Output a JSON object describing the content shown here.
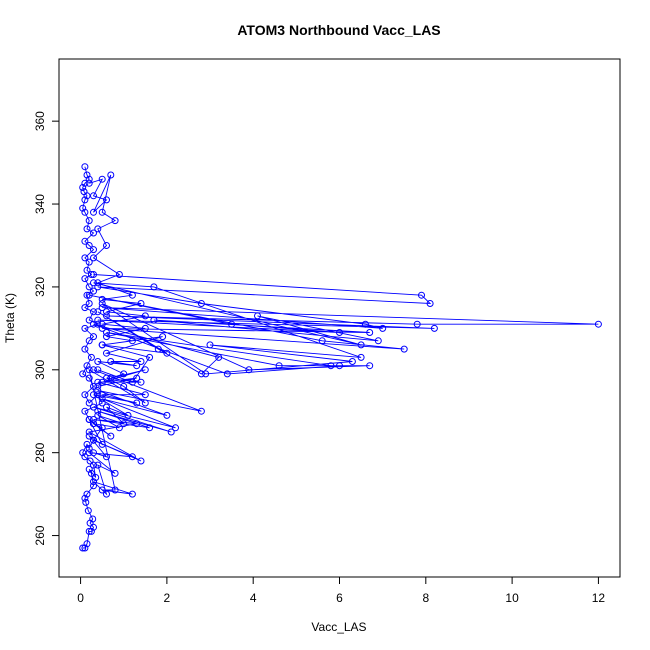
{
  "chart_data": {
    "type": "scatter",
    "title": "ATOM3 Northbound Vacc_LAS",
    "xlabel": "Vacc_LAS",
    "ylabel": "Theta (K)",
    "xlim": [
      -0.5,
      12.5
    ],
    "ylim": [
      250,
      375
    ],
    "xticks": [
      0,
      2,
      4,
      6,
      8,
      10,
      12
    ],
    "yticks": [
      260,
      280,
      300,
      320,
      340,
      360
    ],
    "grid": false,
    "legend": "none",
    "connected": true,
    "marker": "open-circle",
    "color": "#0000ff",
    "series": [
      {
        "points": [
          [
            0.05,
            257
          ],
          [
            0.1,
            257
          ],
          [
            0.15,
            258
          ],
          [
            0.2,
            261
          ],
          [
            0.25,
            261
          ],
          [
            0.3,
            262
          ],
          [
            0.22,
            263
          ],
          [
            0.28,
            264
          ],
          [
            0.18,
            266
          ],
          [
            0.12,
            268
          ],
          [
            0.1,
            269
          ],
          [
            0.15,
            270
          ],
          [
            0.3,
            272
          ],
          [
            0.25,
            275
          ],
          [
            0.2,
            276
          ],
          [
            0.35,
            274
          ],
          [
            0.3,
            277
          ],
          [
            0.22,
            278
          ],
          [
            0.1,
            279
          ],
          [
            0.05,
            280
          ],
          [
            0.15,
            282
          ],
          [
            0.2,
            281
          ],
          [
            0.3,
            283
          ],
          [
            0.5,
            286
          ],
          [
            0.3,
            287
          ],
          [
            0.2,
            288
          ],
          [
            0.1,
            290
          ],
          [
            0.5,
            292
          ],
          [
            0.4,
            294
          ],
          [
            0.2,
            292
          ],
          [
            0.1,
            294
          ],
          [
            0.3,
            296
          ],
          [
            0.2,
            298
          ],
          [
            0.05,
            299
          ],
          [
            0.15,
            301
          ],
          [
            0.25,
            303
          ],
          [
            0.1,
            305
          ],
          [
            0.2,
            307
          ],
          [
            0.3,
            308
          ],
          [
            0.1,
            310
          ],
          [
            0.4,
            311
          ],
          [
            0.2,
            312
          ],
          [
            0.3,
            314
          ],
          [
            0.1,
            315
          ],
          [
            0.2,
            316
          ],
          [
            0.15,
            318
          ],
          [
            0.3,
            319
          ],
          [
            0.2,
            320
          ],
          [
            0.1,
            322
          ],
          [
            0.25,
            323
          ],
          [
            0.15,
            324
          ],
          [
            0.2,
            326
          ],
          [
            0.1,
            327
          ],
          [
            0.3,
            329
          ],
          [
            0.2,
            330
          ],
          [
            0.1,
            331
          ],
          [
            0.3,
            333
          ],
          [
            0.15,
            334
          ],
          [
            0.2,
            336
          ],
          [
            0.1,
            338
          ],
          [
            0.05,
            339
          ],
          [
            0.1,
            341
          ],
          [
            0.15,
            342
          ],
          [
            0.08,
            343
          ],
          [
            0.05,
            344
          ],
          [
            0.1,
            345
          ],
          [
            0.2,
            346
          ],
          [
            0.15,
            347
          ],
          [
            0.1,
            349
          ]
        ]
      },
      {
        "points": [
          [
            0.3,
            323
          ],
          [
            7.9,
            318
          ],
          [
            8.1,
            316
          ],
          [
            0.4,
            320
          ],
          [
            2.8,
            316
          ],
          [
            6.6,
            311
          ],
          [
            7.0,
            310
          ],
          [
            0.5,
            315
          ],
          [
            12.0,
            311
          ],
          [
            7.8,
            311
          ],
          [
            0.6,
            313
          ],
          [
            8.2,
            310
          ],
          [
            0.4,
            312
          ],
          [
            6.0,
            309
          ],
          [
            3.5,
            311
          ],
          [
            0.2,
            318
          ],
          [
            5.6,
            307
          ],
          [
            7.5,
            305
          ],
          [
            0.5,
            310
          ],
          [
            6.7,
            309
          ],
          [
            1.7,
            312
          ],
          [
            6.9,
            307
          ],
          [
            4.1,
            313
          ],
          [
            6.5,
            306
          ],
          [
            0.3,
            321
          ],
          [
            1.7,
            320
          ],
          [
            6.5,
            303
          ],
          [
            3.0,
            306
          ],
          [
            6.3,
            302
          ],
          [
            2.9,
            299
          ],
          [
            0.5,
            316
          ],
          [
            3.9,
            300
          ],
          [
            6.7,
            301
          ],
          [
            4.6,
            301
          ],
          [
            0.6,
            309
          ],
          [
            5.8,
            301
          ],
          [
            6.0,
            301
          ],
          [
            3.4,
            299
          ],
          [
            0.3,
            311
          ],
          [
            3.2,
            303
          ],
          [
            2.8,
            299
          ],
          [
            1.8,
            305
          ],
          [
            0.4,
            314
          ],
          [
            2.0,
            304
          ],
          [
            0.5,
            306
          ],
          [
            1.6,
            303
          ],
          [
            1.2,
            297
          ],
          [
            0.4,
            300
          ]
        ]
      },
      {
        "points": [
          [
            0.3,
            300
          ],
          [
            2.8,
            290
          ],
          [
            0.4,
            295
          ],
          [
            2.0,
            289
          ],
          [
            0.5,
            293
          ],
          [
            2.2,
            286
          ],
          [
            0.3,
            291
          ],
          [
            2.1,
            285
          ],
          [
            0.4,
            290
          ],
          [
            1.6,
            286
          ],
          [
            0.3,
            288
          ],
          [
            1.3,
            287
          ],
          [
            0.2,
            285
          ],
          [
            1.4,
            278
          ],
          [
            0.3,
            283
          ],
          [
            1.2,
            279
          ],
          [
            0.2,
            280
          ],
          [
            0.8,
            275
          ],
          [
            0.4,
            277
          ],
          [
            0.6,
            270
          ],
          [
            0.3,
            273
          ],
          [
            1.2,
            270
          ],
          [
            0.5,
            271
          ],
          [
            0.8,
            271
          ],
          [
            0.2,
            300
          ],
          [
            1.5,
            292
          ],
          [
            1.0,
            296
          ],
          [
            0.6,
            298
          ],
          [
            1.4,
            297
          ],
          [
            0.4,
            297
          ],
          [
            1.5,
            294
          ],
          [
            0.5,
            294
          ],
          [
            1.3,
            292
          ],
          [
            0.3,
            294
          ],
          [
            1.1,
            289
          ],
          [
            0.6,
            291
          ],
          [
            1.0,
            287
          ],
          [
            0.4,
            289
          ],
          [
            0.9,
            286
          ],
          [
            0.3,
            287
          ],
          [
            0.7,
            284
          ],
          [
            0.2,
            288
          ],
          [
            0.5,
            282
          ],
          [
            0.2,
            284
          ],
          [
            0.6,
            279
          ],
          [
            0.3,
            280
          ]
        ]
      },
      {
        "points": [
          [
            0.2,
            345
          ],
          [
            0.5,
            346
          ],
          [
            0.3,
            342
          ],
          [
            0.6,
            341
          ],
          [
            0.3,
            338
          ],
          [
            0.7,
            347
          ],
          [
            0.5,
            338
          ],
          [
            0.8,
            336
          ],
          [
            0.4,
            334
          ],
          [
            0.6,
            330
          ],
          [
            0.3,
            327
          ],
          [
            0.9,
            323
          ],
          [
            0.4,
            321
          ],
          [
            1.2,
            318
          ],
          [
            0.5,
            317
          ],
          [
            1.4,
            316
          ],
          [
            0.6,
            314
          ],
          [
            1.5,
            313
          ],
          [
            0.5,
            311
          ],
          [
            1.5,
            310
          ],
          [
            0.6,
            308
          ],
          [
            1.2,
            307
          ],
          [
            0.5,
            306
          ],
          [
            1.9,
            308
          ],
          [
            0.6,
            304
          ],
          [
            1.4,
            302
          ],
          [
            0.7,
            302
          ],
          [
            1.3,
            301
          ],
          [
            0.4,
            302
          ],
          [
            1.0,
            299
          ],
          [
            0.7,
            298
          ],
          [
            1.5,
            300
          ],
          [
            0.5,
            297
          ],
          [
            1.3,
            298
          ],
          [
            0.4,
            296
          ]
        ]
      }
    ]
  }
}
